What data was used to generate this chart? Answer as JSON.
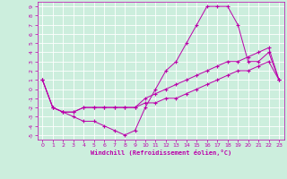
{
  "xlabel": "Windchill (Refroidissement éolien,°C)",
  "background_color": "#cceedd",
  "grid_color": "#ffffff",
  "line_color": "#bb00aa",
  "xlim": [
    -0.5,
    23.5
  ],
  "ylim": [
    -5.5,
    9.5
  ],
  "xticks": [
    0,
    1,
    2,
    3,
    4,
    5,
    6,
    7,
    8,
    9,
    10,
    11,
    12,
    13,
    14,
    15,
    16,
    17,
    18,
    19,
    20,
    21,
    22,
    23
  ],
  "yticks": [
    -5,
    -4,
    -3,
    -2,
    -1,
    0,
    1,
    2,
    3,
    4,
    5,
    6,
    7,
    8,
    9
  ],
  "line1_x": [
    0,
    1,
    2,
    3,
    4,
    5,
    6,
    7,
    8,
    9,
    10,
    11,
    12,
    13,
    14,
    15,
    16,
    17,
    18,
    19,
    20,
    21,
    22,
    23
  ],
  "line1_y": [
    1,
    -2,
    -2.5,
    -3,
    -3.5,
    -3.5,
    -4,
    -4.5,
    -5,
    -4.5,
    -2,
    0,
    2,
    3,
    5,
    7,
    9,
    9,
    9,
    7,
    3,
    3,
    4,
    1
  ],
  "line2_x": [
    0,
    1,
    2,
    3,
    4,
    5,
    6,
    7,
    8,
    9,
    10,
    11,
    12,
    13,
    14,
    15,
    16,
    17,
    18,
    19,
    20,
    21,
    22,
    23
  ],
  "line2_y": [
    1,
    -2,
    -2.5,
    -2.5,
    -2,
    -2,
    -2,
    -2,
    -2,
    -2,
    -1.5,
    -1.5,
    -1,
    -1,
    -0.5,
    0,
    0.5,
    1,
    1.5,
    2,
    2,
    2.5,
    3,
    1
  ],
  "line3_x": [
    0,
    1,
    2,
    3,
    4,
    5,
    6,
    7,
    8,
    9,
    10,
    11,
    12,
    13,
    14,
    15,
    16,
    17,
    18,
    19,
    20,
    21,
    22,
    23
  ],
  "line3_y": [
    1,
    -2,
    -2.5,
    -2.5,
    -2,
    -2,
    -2,
    -2,
    -2,
    -2,
    -1,
    -0.5,
    0,
    0.5,
    1,
    1.5,
    2,
    2.5,
    3,
    3,
    3.5,
    4,
    4.5,
    1
  ]
}
